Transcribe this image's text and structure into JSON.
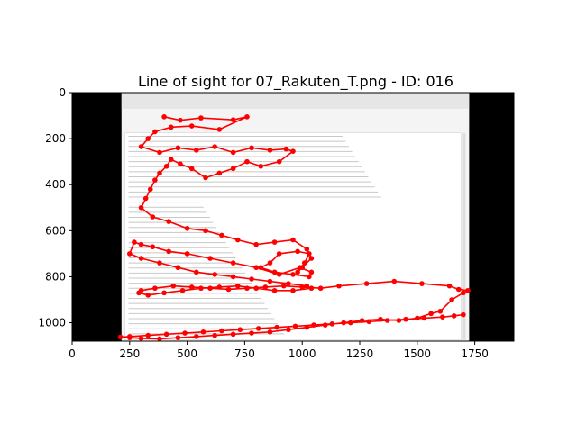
{
  "chart_data": {
    "type": "line",
    "title": "Line of sight for 07_Rakuten_T.png - ID: 016",
    "xlabel": "",
    "ylabel": "",
    "xlim": [
      0,
      1920
    ],
    "ylim": [
      1080,
      0
    ],
    "x_ticks": [
      0,
      250,
      500,
      750,
      1000,
      1250,
      1500,
      1750
    ],
    "y_ticks": [
      0,
      200,
      400,
      600,
      800,
      1000
    ],
    "series_color": "#ff0000",
    "background_image": {
      "content": "screenshot-of-email-client",
      "x_range": [
        215,
        1725
      ],
      "y_range": [
        0,
        1080
      ],
      "side_bars_color": "#000000"
    },
    "series": [
      {
        "x": [
          400,
          470,
          560,
          700,
          760,
          640,
          520,
          430,
          360,
          330,
          300,
          380,
          460,
          540,
          620,
          700,
          780,
          860,
          930,
          960,
          900,
          820,
          760,
          700,
          640,
          580,
          520,
          470,
          430,
          410,
          380,
          360,
          340,
          320,
          300,
          350,
          420,
          500,
          580,
          650,
          720,
          800,
          880,
          960,
          1020,
          1040,
          1000,
          980,
          1010,
          1030,
          980,
          900,
          860,
          820,
          880,
          960,
          1030,
          1040,
          990,
          900,
          800,
          700,
          600,
          500,
          420,
          350,
          300,
          270,
          250,
          300,
          380,
          460,
          540,
          620,
          700,
          780,
          860,
          940,
          1020,
          1040,
          960,
          880,
          800,
          720,
          640,
          560,
          480,
          400,
          330,
          290,
          300,
          360,
          440,
          520,
          600,
          680,
          760,
          840,
          920,
          1000,
          1080,
          1160,
          1280,
          1400,
          1520,
          1640,
          1680,
          1720,
          1700,
          1650,
          1600,
          1560,
          1500,
          1420,
          1340,
          1260,
          1180,
          1100,
          1020,
          940,
          860,
          780,
          700,
          620,
          540,
          460,
          380,
          300,
          250,
          210,
          250,
          330,
          410,
          490,
          570,
          650,
          730,
          810,
          890,
          970,
          1050,
          1130,
          1210,
          1290,
          1370,
          1450,
          1530,
          1610,
          1660,
          1700
        ],
        "y": [
          105,
          120,
          110,
          118,
          105,
          160,
          145,
          150,
          170,
          200,
          235,
          260,
          240,
          250,
          235,
          260,
          240,
          250,
          245,
          255,
          300,
          320,
          300,
          330,
          350,
          370,
          330,
          310,
          290,
          320,
          350,
          380,
          420,
          460,
          500,
          540,
          560,
          590,
          600,
          620,
          640,
          660,
          650,
          640,
          680,
          720,
          760,
          780,
          740,
          700,
          690,
          700,
          740,
          760,
          780,
          790,
          800,
          780,
          760,
          790,
          760,
          740,
          720,
          700,
          690,
          670,
          660,
          650,
          700,
          720,
          740,
          760,
          780,
          790,
          800,
          810,
          820,
          830,
          840,
          850,
          860,
          860,
          850,
          840,
          845,
          850,
          860,
          870,
          880,
          870,
          860,
          850,
          840,
          845,
          850,
          855,
          850,
          845,
          840,
          845,
          850,
          840,
          830,
          820,
          830,
          840,
          855,
          860,
          870,
          900,
          950,
          960,
          980,
          990,
          985,
          990,
          1000,
          1010,
          1020,
          1030,
          1040,
          1045,
          1050,
          1055,
          1060,
          1065,
          1070,
          1068,
          1065,
          1062,
          1060,
          1055,
          1050,
          1045,
          1040,
          1035,
          1030,
          1025,
          1020,
          1015,
          1010,
          1005,
          1000,
          995,
          990,
          985,
          980,
          975,
          970,
          965
        ]
      }
    ]
  }
}
